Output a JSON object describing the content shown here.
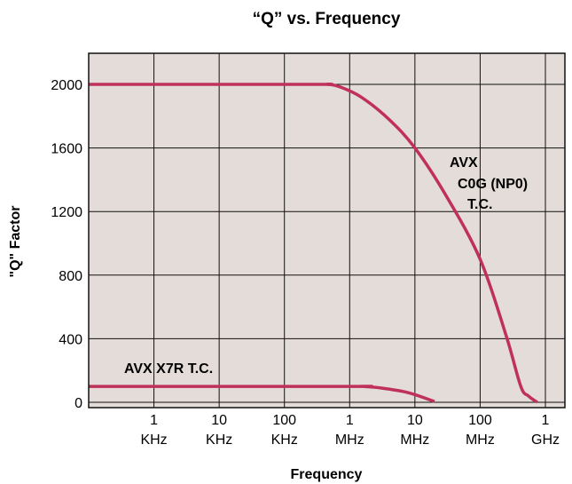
{
  "chart_data": {
    "type": "line",
    "title": "“Q” vs. Frequency",
    "xlabel": "Frequency",
    "ylabel": "\"Q\" Factor",
    "x_scale": "log",
    "xlim_hz": [
      100,
      1000000000
    ],
    "ylim": [
      0,
      2160
    ],
    "grid": true,
    "x_ticks": [
      {
        "hz": 1000,
        "value": "1",
        "unit": "KHz"
      },
      {
        "hz": 10000,
        "value": "10",
        "unit": "KHz"
      },
      {
        "hz": 100000,
        "value": "100",
        "unit": "KHz"
      },
      {
        "hz": 1000000,
        "value": "1",
        "unit": "MHz"
      },
      {
        "hz": 10000000,
        "value": "10",
        "unit": "MHz"
      },
      {
        "hz": 100000000,
        "value": "100",
        "unit": "MHz"
      },
      {
        "hz": 1000000000,
        "value": "1",
        "unit": "GHz"
      }
    ],
    "y_ticks": [
      "0",
      "400",
      "800",
      "1200",
      "1600",
      "2000"
    ],
    "series": [
      {
        "label_lines": [
          "AVX",
          "C0G (NP0)",
          "T.C."
        ],
        "color": "#c0315a",
        "points": [
          {
            "hz": 100,
            "q": 2000
          },
          {
            "hz": 250000,
            "q": 2000
          },
          {
            "hz": 450000,
            "q": 2000
          },
          {
            "hz": 700000,
            "q": 1985
          },
          {
            "hz": 1500000,
            "q": 1920
          },
          {
            "hz": 4000000,
            "q": 1780
          },
          {
            "hz": 10000000,
            "q": 1600
          },
          {
            "hz": 30000000,
            "q": 1300
          },
          {
            "hz": 100000000,
            "q": 900
          },
          {
            "hz": 250000000,
            "q": 420
          },
          {
            "hz": 420000000,
            "q": 100
          },
          {
            "hz": 550000000,
            "q": 40
          },
          {
            "hz": 750000000,
            "q": 0
          }
        ]
      },
      {
        "label_lines": [
          "AVX X7R T.C."
        ],
        "color": "#c0315a",
        "points": [
          {
            "hz": 100,
            "q": 100
          },
          {
            "hz": 1000000,
            "q": 100
          },
          {
            "hz": 1500000,
            "q": 100
          },
          {
            "hz": 3000000,
            "q": 90
          },
          {
            "hz": 8000000,
            "q": 60
          },
          {
            "hz": 20000000,
            "q": 5
          }
        ]
      }
    ],
    "colors": {
      "plot_background": "#e3dcd8",
      "grid": "#111111",
      "line": "#c0315a"
    }
  }
}
